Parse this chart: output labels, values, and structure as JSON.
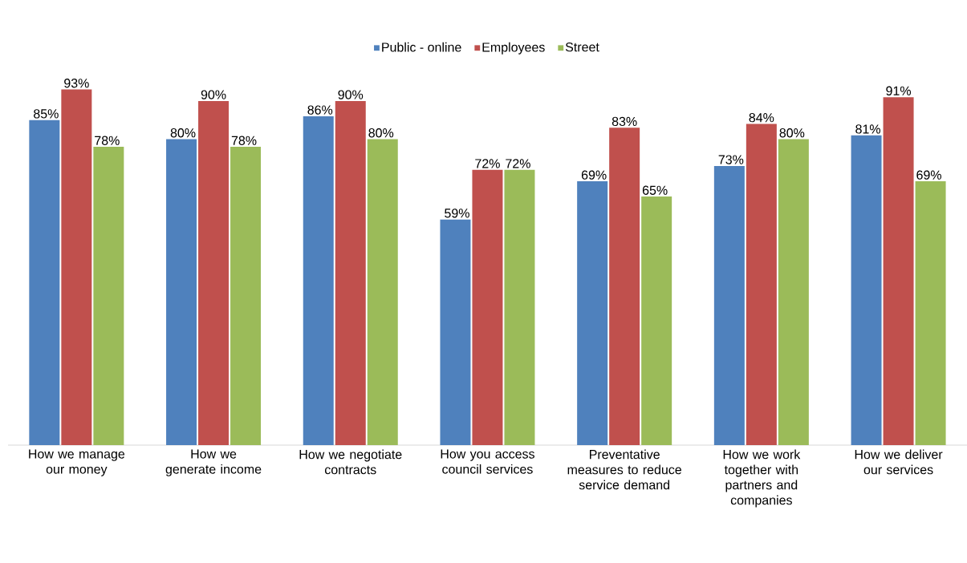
{
  "chart_data": {
    "type": "bar",
    "legend": "top",
    "categories": [
      "How we manage our money",
      "How we generate income",
      "How we negotiate contracts",
      "How you access council services",
      "Preventative measures to reduce service demand",
      "How we work together with partners and companies",
      "How we deliver our services"
    ],
    "series": [
      {
        "name": "Public - online",
        "color": "#4f81bd",
        "values": [
          85,
          80,
          86,
          59,
          69,
          73,
          81
        ],
        "value_labels": [
          "85%",
          "80%",
          "86%",
          "59%",
          "69%",
          "73%",
          "81%"
        ]
      },
      {
        "name": "Employees",
        "color": "#c0504d",
        "values": [
          93,
          90,
          90,
          72,
          83,
          84,
          91
        ],
        "value_labels": [
          "93%",
          "90%",
          "90%",
          "72%",
          "83%",
          "84%",
          "91%"
        ]
      },
      {
        "name": "Street",
        "color": "#9bbb59",
        "values": [
          78,
          78,
          80,
          72,
          65,
          80,
          69
        ],
        "value_labels": [
          "78%",
          "78%",
          "80%",
          "72%",
          "65%",
          "80%",
          "69%"
        ]
      }
    ]
  }
}
